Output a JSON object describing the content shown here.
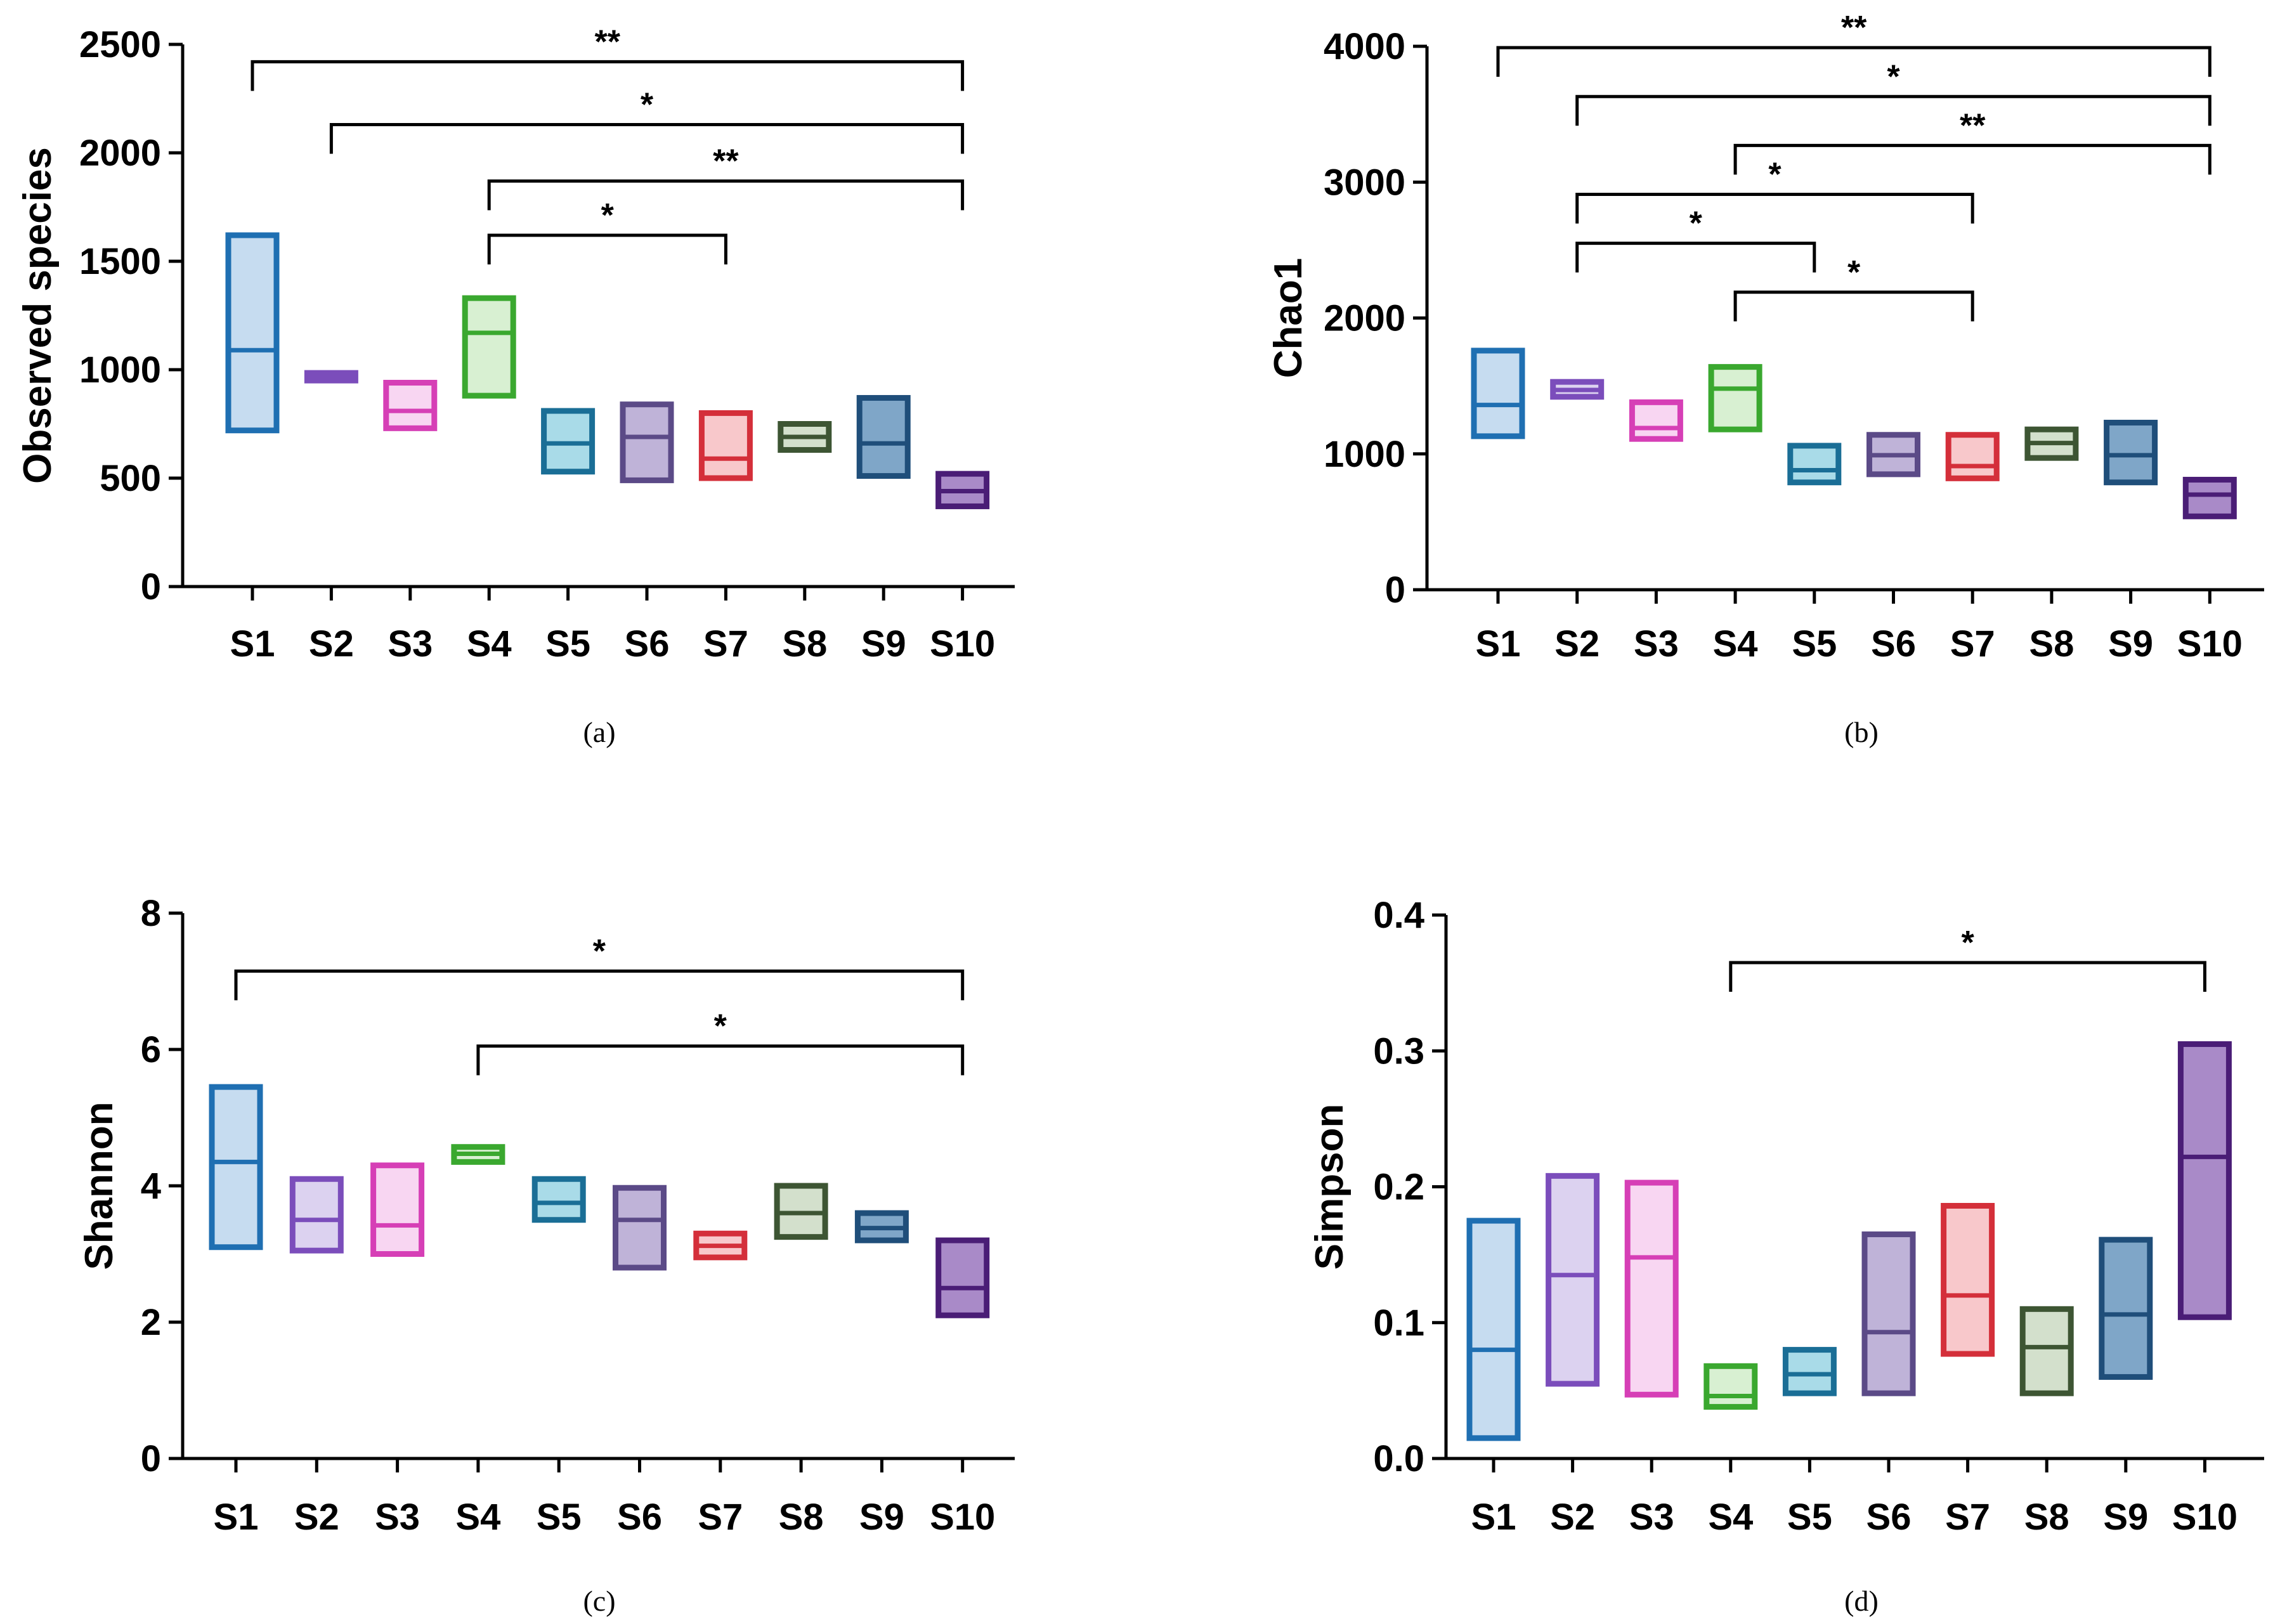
{
  "colors": {
    "S1": "#1f6fb2",
    "S2": "#7b4dbb",
    "S3": "#d63fb6",
    "S4": "#3aa82f",
    "S5": "#1a6e96",
    "S6": "#5b4a87",
    "S7": "#d42f3a",
    "S8": "#3d5533",
    "S9": "#1f4e7a",
    "S10": "#4a1d76"
  },
  "fills": {
    "S1": "#c6dcf0",
    "S2": "#dcd2f0",
    "S3": "#f8d6f2",
    "S4": "#d8f0d2",
    "S5": "#a9dbe8",
    "S6": "#bfb3d8",
    "S7": "#f8c8cb",
    "S8": "#d3e0cc",
    "S9": "#7fa6c8",
    "S10": "#a98ac8"
  },
  "chart_data": [
    {
      "type": "box",
      "panel": "(a)",
      "ylabel": "Observed species",
      "ylim": [
        0,
        2500
      ],
      "yticks": [
        0,
        500,
        1000,
        1500,
        2000,
        2500
      ],
      "categories": [
        "S1",
        "S2",
        "S3",
        "S4",
        "S5",
        "S6",
        "S7",
        "S8",
        "S9",
        "S10"
      ],
      "boxes": [
        {
          "min": 720,
          "median": 1090,
          "max": 1620
        },
        {
          "min": 950,
          "median": 965,
          "max": 985
        },
        {
          "min": 730,
          "median": 810,
          "max": 940
        },
        {
          "min": 880,
          "median": 1170,
          "max": 1330
        },
        {
          "min": 530,
          "median": 660,
          "max": 810
        },
        {
          "min": 490,
          "median": 690,
          "max": 840
        },
        {
          "min": 500,
          "median": 590,
          "max": 800
        },
        {
          "min": 630,
          "median": 690,
          "max": 750
        },
        {
          "min": 510,
          "median": 660,
          "max": 870
        },
        {
          "min": 370,
          "median": 440,
          "max": 520
        }
      ],
      "significance": [
        {
          "from": "S1",
          "to": "S10",
          "y": 2420,
          "label": "**"
        },
        {
          "from": "S2",
          "to": "S10",
          "y": 2130,
          "label": "*"
        },
        {
          "from": "S4",
          "to": "S10",
          "y": 1870,
          "label": "**"
        },
        {
          "from": "S4",
          "to": "S7",
          "y": 1620,
          "label": "*"
        }
      ]
    },
    {
      "type": "box",
      "panel": "(b)",
      "ylabel": "Chao1",
      "ylim": [
        0,
        4000
      ],
      "yticks": [
        0,
        1000,
        2000,
        3000,
        4000
      ],
      "categories": [
        "S1",
        "S2",
        "S3",
        "S4",
        "S5",
        "S6",
        "S7",
        "S8",
        "S9",
        "S10"
      ],
      "boxes": [
        {
          "min": 1130,
          "median": 1360,
          "max": 1760
        },
        {
          "min": 1420,
          "median": 1470,
          "max": 1530
        },
        {
          "min": 1110,
          "median": 1190,
          "max": 1380
        },
        {
          "min": 1180,
          "median": 1480,
          "max": 1640
        },
        {
          "min": 790,
          "median": 880,
          "max": 1060
        },
        {
          "min": 850,
          "median": 990,
          "max": 1140
        },
        {
          "min": 820,
          "median": 910,
          "max": 1140
        },
        {
          "min": 970,
          "median": 1080,
          "max": 1180
        },
        {
          "min": 790,
          "median": 990,
          "max": 1230
        },
        {
          "min": 540,
          "median": 700,
          "max": 810
        }
      ],
      "significance": [
        {
          "from": "S1",
          "to": "S10",
          "y": 3990,
          "label": "**"
        },
        {
          "from": "S2",
          "to": "S10",
          "y": 3630,
          "label": "*"
        },
        {
          "from": "S4",
          "to": "S10",
          "y": 3270,
          "label": "**"
        },
        {
          "from": "S2",
          "to": "S7",
          "y": 2910,
          "label": "*"
        },
        {
          "from": "S2",
          "to": "S5",
          "y": 2550,
          "label": "*"
        },
        {
          "from": "S4",
          "to": "S7",
          "y": 2190,
          "label": "*"
        }
      ]
    },
    {
      "type": "box",
      "panel": "(c)",
      "ylabel": "Shannon",
      "ylim": [
        0,
        8
      ],
      "yticks": [
        0,
        2,
        4,
        6,
        8
      ],
      "categories": [
        "S1",
        "S2",
        "S3",
        "S4",
        "S5",
        "S6",
        "S7",
        "S8",
        "S9",
        "S10"
      ],
      "boxes": [
        {
          "min": 3.1,
          "median": 4.35,
          "max": 5.45
        },
        {
          "min": 3.05,
          "median": 3.5,
          "max": 4.1
        },
        {
          "min": 3.0,
          "median": 3.42,
          "max": 4.3
        },
        {
          "min": 4.35,
          "median": 4.47,
          "max": 4.57
        },
        {
          "min": 3.5,
          "median": 3.75,
          "max": 4.1
        },
        {
          "min": 2.8,
          "median": 3.5,
          "max": 3.97
        },
        {
          "min": 2.95,
          "median": 3.12,
          "max": 3.3
        },
        {
          "min": 3.25,
          "median": 3.6,
          "max": 4.0
        },
        {
          "min": 3.2,
          "median": 3.38,
          "max": 3.6
        },
        {
          "min": 2.1,
          "median": 2.5,
          "max": 3.2
        }
      ],
      "significance": [
        {
          "from": "S1",
          "to": "S10",
          "y": 7.15,
          "label": "*"
        },
        {
          "from": "S4",
          "to": "S10",
          "y": 6.05,
          "label": "*"
        }
      ]
    },
    {
      "type": "box",
      "panel": "(d)",
      "ylabel": "Simpson",
      "ylim": [
        0,
        0.4
      ],
      "yticks": [
        "0.0",
        "0.1",
        "0.2",
        "0.3",
        "0.4"
      ],
      "categories": [
        "S1",
        "S2",
        "S3",
        "S4",
        "S5",
        "S6",
        "S7",
        "S8",
        "S9",
        "S10"
      ],
      "boxes": [
        {
          "min": 0.015,
          "median": 0.08,
          "max": 0.175
        },
        {
          "min": 0.055,
          "median": 0.135,
          "max": 0.208
        },
        {
          "min": 0.047,
          "median": 0.148,
          "max": 0.203
        },
        {
          "min": 0.038,
          "median": 0.046,
          "max": 0.068
        },
        {
          "min": 0.048,
          "median": 0.062,
          "max": 0.08
        },
        {
          "min": 0.048,
          "median": 0.093,
          "max": 0.165
        },
        {
          "min": 0.077,
          "median": 0.12,
          "max": 0.186
        },
        {
          "min": 0.048,
          "median": 0.082,
          "max": 0.11
        },
        {
          "min": 0.06,
          "median": 0.106,
          "max": 0.161
        },
        {
          "min": 0.104,
          "median": 0.222,
          "max": 0.305
        }
      ],
      "significance": [
        {
          "from": "S4",
          "to": "S10",
          "y": 0.365,
          "label": "*"
        }
      ]
    }
  ]
}
